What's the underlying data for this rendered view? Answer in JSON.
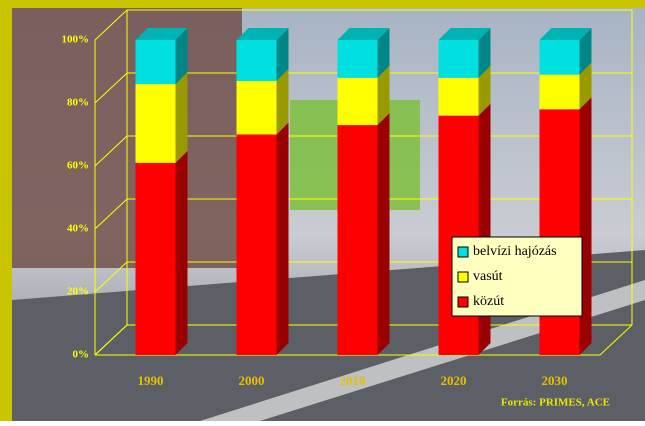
{
  "chart_data": {
    "type": "stacked-bar-3d",
    "categories": [
      "1990",
      "2000",
      "2010",
      "2020",
      "2030"
    ],
    "series": [
      {
        "name": "közút",
        "color": "#ff0000",
        "values": [
          61,
          70,
          73,
          76,
          78
        ]
      },
      {
        "name": "vasút",
        "color": "#ffff00",
        "values": [
          25,
          17,
          15,
          12,
          11
        ]
      },
      {
        "name": "belvízi hajózás",
        "color": "#00e0e0",
        "values": [
          14,
          13,
          12,
          12,
          11
        ]
      }
    ],
    "ylim": [
      0,
      100
    ],
    "yticks": [
      {
        "value": 0,
        "label": "0%"
      },
      {
        "value": 20,
        "label": "20%"
      },
      {
        "value": 40,
        "label": "40%"
      },
      {
        "value": 60,
        "label": "60%"
      },
      {
        "value": 80,
        "label": "80%"
      },
      {
        "value": 100,
        "label": "100%"
      }
    ],
    "grid": true,
    "source": "Forrás: PRIMES, ACE"
  }
}
